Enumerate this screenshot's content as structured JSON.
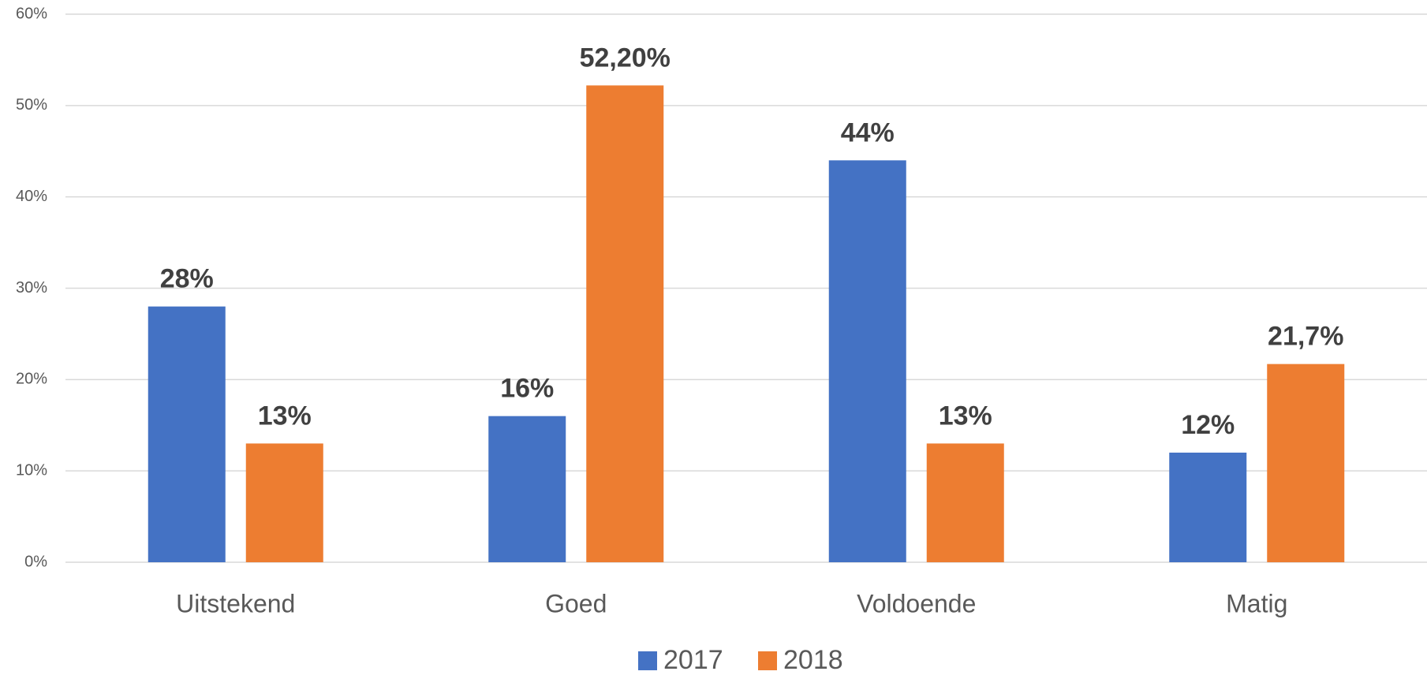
{
  "chart_data": {
    "type": "bar",
    "categories": [
      "Uitstekend",
      "Goed",
      "Voldoende",
      "Matig"
    ],
    "series": [
      {
        "name": "2017",
        "color": "#4472c4",
        "values": [
          28,
          16,
          44,
          12
        ],
        "value_labels": [
          "28%",
          "16%",
          "44%",
          "12%"
        ]
      },
      {
        "name": "2018",
        "color": "#ed7d31",
        "values": [
          13,
          52.2,
          13,
          21.7
        ],
        "value_labels": [
          "13%",
          "52,20%",
          "13%",
          "21,7%"
        ]
      }
    ],
    "ylim": [
      0,
      60
    ],
    "yticks": [
      {
        "value": 0,
        "label": "0%"
      },
      {
        "value": 10,
        "label": "10%"
      },
      {
        "value": 20,
        "label": "20%"
      },
      {
        "value": 30,
        "label": "30%"
      },
      {
        "value": 40,
        "label": "40%"
      },
      {
        "value": 50,
        "label": "50%"
      },
      {
        "value": 60,
        "label": "60%"
      }
    ],
    "grid": true,
    "legend": "bottom"
  }
}
